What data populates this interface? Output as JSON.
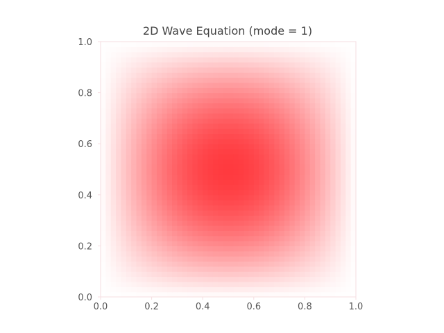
{
  "chart_data": {
    "type": "heatmap",
    "title": "2D Wave Equation (mode = 1)",
    "xlabel": "",
    "ylabel": "",
    "xlim": [
      0.0,
      1.0
    ],
    "ylim": [
      0.0,
      1.0
    ],
    "x_ticks": [
      "0.0",
      "0.2",
      "0.4",
      "0.6",
      "0.8",
      "1.0"
    ],
    "y_ticks": [
      "0.0",
      "0.2",
      "0.4",
      "0.6",
      "0.8",
      "1.0"
    ],
    "grid": false,
    "legend": false,
    "function": "sin(pi*x)*sin(pi*y)",
    "resolution": 50,
    "value_range": [
      0.0,
      1.0
    ],
    "colors": {
      "low": "#ffffff",
      "high": "#ff3a3f",
      "axes_spine": "#f6dde0",
      "tick_text": "#555555",
      "title_text": "#444444"
    }
  }
}
